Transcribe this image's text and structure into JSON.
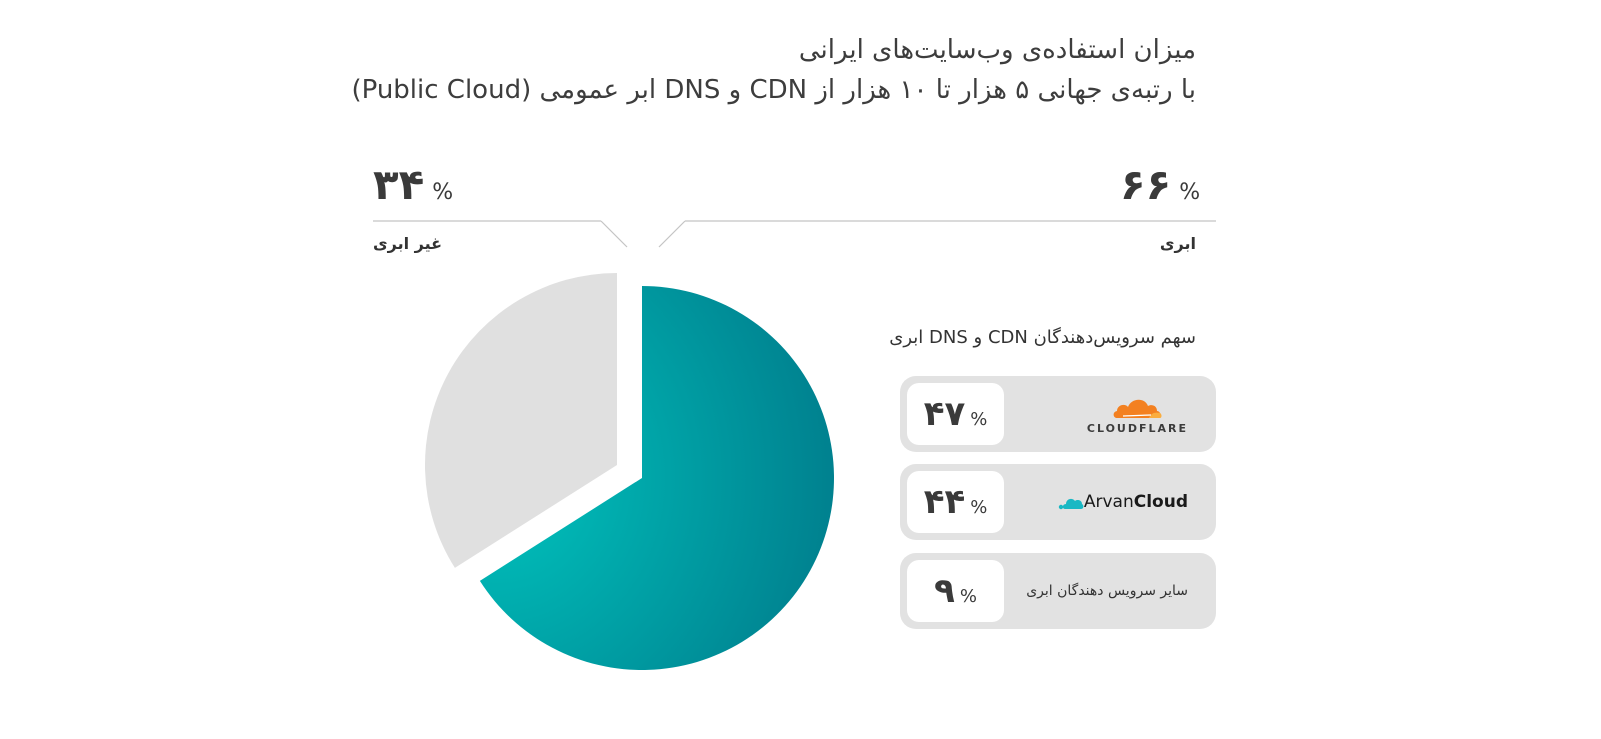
{
  "chart_data": {
    "type": "pie",
    "title": "میزان استفاده‌ی وب‌سایت‌های ایرانی",
    "subtitle": "با رتبه‌ی جهانی ۵ هزار تا ۱۰ هزار از CDN و DNS ابر عمومی (Public Cloud)",
    "slices": [
      {
        "label": "ابری",
        "value": 66,
        "display": "۶۶",
        "color": "#00a0a6"
      },
      {
        "label": "غیر ابری",
        "value": 34,
        "display": "۳۴",
        "color": "#e0e0e0"
      }
    ],
    "percent_sign": "%",
    "breakdown": {
      "title": "سهم سرویس‌دهندگان CDN و DNS ابری",
      "items": [
        {
          "name": "CLOUDFLARE",
          "value": 47,
          "display": "۴۷",
          "logo": "cloudflare-logo",
          "color": "#f38020"
        },
        {
          "name_parts": [
            "Arvan",
            "Cloud"
          ],
          "value": 44,
          "display": "۴۴",
          "logo": "arvancloud-logo",
          "color": "#19b8c4"
        },
        {
          "name": "سایر سرویس دهندگان ابری",
          "value": 9,
          "display": "۹"
        }
      ]
    }
  }
}
